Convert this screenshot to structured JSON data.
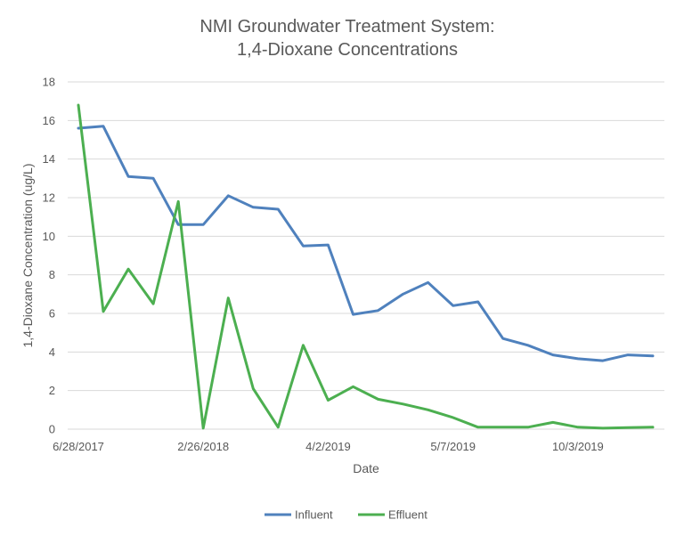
{
  "chart_data": {
    "type": "line",
    "title_lines": [
      "NMI Groundwater Treatment System:",
      "1,4-Dioxane Concentrations"
    ],
    "xlabel": "Date",
    "ylabel": "1,4-Dioxane Concentration (ug/L)",
    "ylim": [
      0,
      18
    ],
    "yticks": [
      0,
      2,
      4,
      6,
      8,
      10,
      12,
      14,
      16,
      18
    ],
    "x_tick_labels": [
      {
        "index": 0,
        "label": "6/28/2017"
      },
      {
        "index": 5,
        "label": "2/26/2018"
      },
      {
        "index": 10,
        "label": "4/2/2019"
      },
      {
        "index": 15,
        "label": "5/7/2019"
      },
      {
        "index": 20,
        "label": "10/3/2019"
      }
    ],
    "grid": true,
    "legend_position": "bottom",
    "series": [
      {
        "name": "Influent",
        "color": "#4f81bd",
        "values": [
          15.6,
          15.7,
          13.1,
          13.0,
          10.6,
          10.6,
          12.1,
          11.5,
          11.4,
          9.5,
          9.55,
          5.95,
          6.15,
          7.0,
          7.6,
          6.4,
          6.6,
          4.7,
          4.35,
          3.85,
          3.65,
          3.55,
          3.85,
          3.8
        ]
      },
      {
        "name": "Effluent",
        "color": "#4caf50",
        "values": [
          16.8,
          6.1,
          8.3,
          6.5,
          11.8,
          0.05,
          6.8,
          2.1,
          0.1,
          4.35,
          1.5,
          2.2,
          1.55,
          1.3,
          1.0,
          0.6,
          0.1,
          0.1,
          0.1,
          0.35,
          0.1,
          0.05,
          0.08,
          0.1
        ]
      }
    ]
  }
}
